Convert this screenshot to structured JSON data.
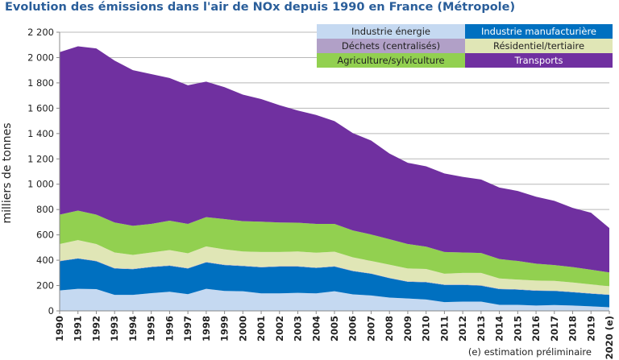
{
  "chart_data": {
    "type": "area",
    "stacked": true,
    "title": "Evolution des émissions dans l'air de NOx depuis 1990 en France (Métropole)",
    "xlabel": "",
    "ylabel": "milliers de tonnes",
    "ylim": [
      0,
      2200
    ],
    "yticks": [
      0,
      200,
      400,
      600,
      800,
      1000,
      1200,
      1400,
      1600,
      1800,
      2000,
      2200
    ],
    "ytick_labels": [
      "0",
      "200",
      "400",
      "600",
      "800",
      "1 000",
      "1 200",
      "1 400",
      "1 600",
      "1 800",
      "2 000",
      "2 200"
    ],
    "grid": true,
    "legend_position": "top-right",
    "categories": [
      "1990",
      "1991",
      "1992",
      "1993",
      "1994",
      "1995",
      "1996",
      "1997",
      "1998",
      "1999",
      "2000",
      "2001",
      "2002",
      "2003",
      "2004",
      "2005",
      "2006",
      "2007",
      "2008",
      "2009",
      "2010",
      "2011",
      "2012",
      "2013",
      "2014",
      "2015",
      "2016",
      "2017",
      "2018",
      "2019",
      "2020 (e)"
    ],
    "series": [
      {
        "name": "Industrie énergie",
        "color": "#c5d9f1",
        "text_color": "#222222",
        "values": [
          161,
          174,
          172,
          126,
          126,
          140,
          151,
          132,
          174,
          157,
          155,
          138,
          138,
          142,
          138,
          155,
          130,
          122,
          105,
          98,
          90,
          69,
          73,
          73,
          48,
          48,
          42,
          46,
          42,
          36,
          29
        ]
      },
      {
        "name": "Industrie manufacturière",
        "color": "#0070c0",
        "text_color": "#ffffff",
        "values": [
          231,
          239,
          220,
          209,
          203,
          206,
          205,
          203,
          209,
          205,
          199,
          206,
          212,
          208,
          201,
          195,
          184,
          171,
          153,
          132,
          136,
          136,
          132,
          126,
          124,
          120,
          117,
          111,
          105,
          100,
          97
        ]
      },
      {
        "name": "Déchets (centralisés)",
        "color": "#b1a0c7",
        "text_color": "#222222",
        "values": [
          3,
          3,
          3,
          3,
          3,
          3,
          3,
          3,
          3,
          3,
          3,
          3,
          3,
          3,
          3,
          3,
          3,
          3,
          3,
          3,
          3,
          3,
          3,
          3,
          3,
          3,
          3,
          3,
          3,
          3,
          3
        ]
      },
      {
        "name": "Résidentiel/tertiaire",
        "color": "#e0e6b6",
        "text_color": "#222222",
        "values": [
          133,
          143,
          133,
          123,
          110,
          112,
          121,
          117,
          123,
          121,
          112,
          118,
          112,
          116,
          117,
          114,
          106,
          98,
          104,
          102,
          102,
          85,
          92,
          98,
          81,
          76,
          77,
          77,
          74,
          70,
          66
        ]
      },
      {
        "name": "Agriculture/sylviculture",
        "color": "#92d050",
        "text_color": "#222222",
        "values": [
          232,
          233,
          232,
          237,
          230,
          226,
          232,
          232,
          231,
          239,
          239,
          239,
          233,
          227,
          228,
          220,
          212,
          209,
          201,
          193,
          176,
          172,
          161,
          157,
          153,
          147,
          134,
          125,
          122,
          116,
          109
        ]
      },
      {
        "name": "Transports",
        "color": "#7030a0",
        "text_color": "#ffffff",
        "values": [
          1283,
          1297,
          1312,
          1278,
          1228,
          1182,
          1126,
          1094,
          1070,
          1041,
          999,
          968,
          926,
          886,
          860,
          811,
          769,
          742,
          676,
          641,
          634,
          620,
          597,
          580,
          565,
          553,
          528,
          507,
          467,
          450,
          350
        ]
      }
    ],
    "legend_order": [
      0,
      1,
      2,
      3,
      4,
      5
    ],
    "annotation": "(e) estimation préliminaire"
  }
}
